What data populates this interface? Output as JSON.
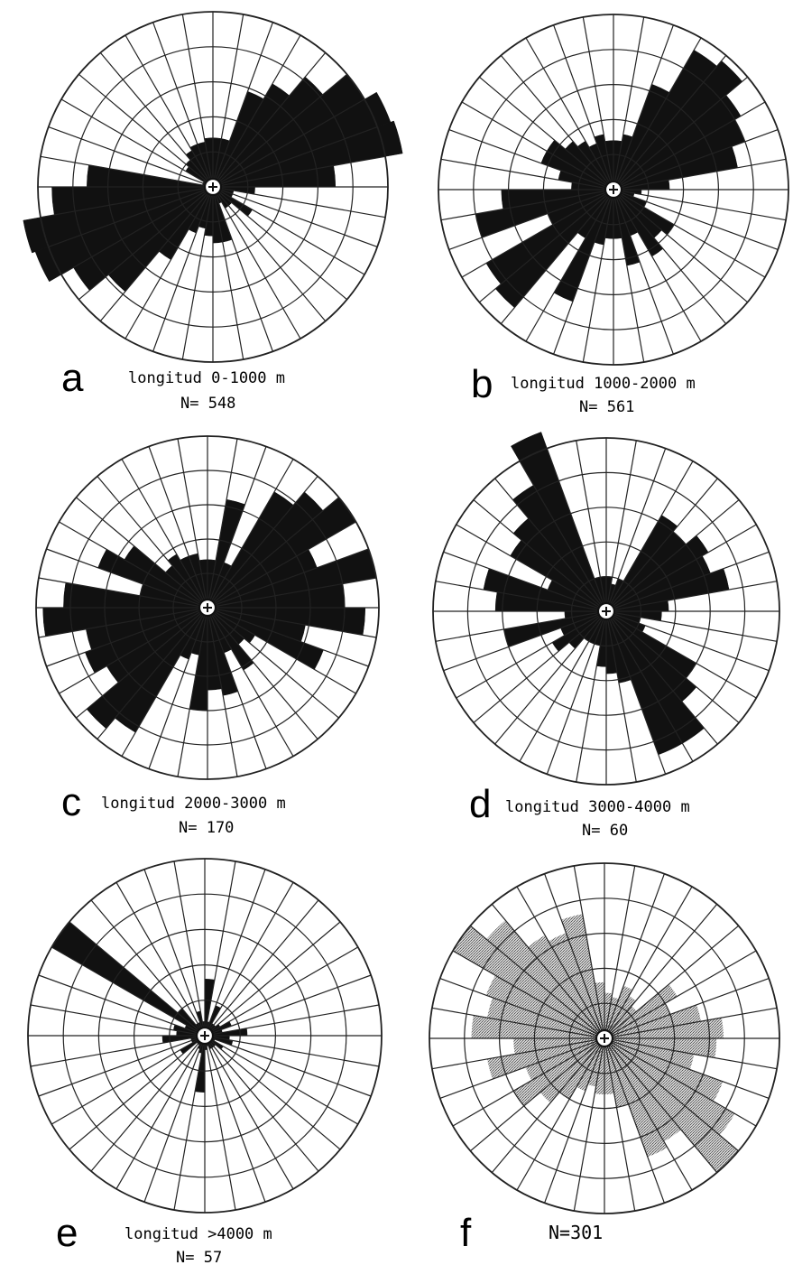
{
  "figure": {
    "colors": {
      "ink": "#111111",
      "grid": "#222222",
      "paper": "#ffffff",
      "stipple": "#9a9a9a"
    }
  },
  "chart_data": [
    {
      "type": "rose",
      "panel": "a",
      "title": "longitud 0-1000 m",
      "n_label": "N= 548",
      "fill": "solid",
      "sectors": 36,
      "bin_width_deg": 10,
      "rings": 5,
      "azimuth_start_deg": 0,
      "values": [
        1.4,
        1.4,
        2.9,
        3.4,
        4.1,
        5.0,
        5.4,
        5.5,
        3.5,
        1.2,
        0.6,
        0.6,
        1.3,
        0.7,
        0.7,
        0.5,
        1.6,
        1.6,
        1.4,
        1.2,
        1.4,
        2.4,
        3.9,
        4.6,
        5.4,
        5.5,
        4.6,
        3.6,
        0.3,
        0.3,
        0.9,
        1.0,
        1.2,
        1.3,
        1.3,
        1.4
      ]
    },
    {
      "type": "rose",
      "panel": "b",
      "title": "longitud 1000-2000 m",
      "n_label": "N= 561",
      "fill": "solid",
      "sectors": 36,
      "bin_width_deg": 10,
      "rings": 5,
      "azimuth_start_deg": 0,
      "values": [
        1.4,
        1.6,
        3.2,
        4.6,
        4.8,
        4.2,
        4.0,
        3.6,
        1.6,
        0.8,
        0.6,
        1.0,
        2.0,
        1.8,
        2.2,
        1.4,
        2.2,
        1.4,
        1.4,
        1.6,
        3.4,
        1.6,
        4.4,
        4.2,
        2.0,
        4.0,
        3.2,
        1.2,
        1.6,
        2.2,
        2.2,
        1.8,
        1.6,
        1.4,
        1.6,
        1.4
      ]
    },
    {
      "type": "rose",
      "panel": "c",
      "title": "longitud 2000-3000 m",
      "n_label": "N= 170",
      "fill": "solid",
      "sectors": 36,
      "bin_width_deg": 10,
      "rings": 5,
      "azimuth_start_deg": 0,
      "values": [
        1.4,
        3.2,
        1.4,
        3.9,
        4.4,
        5.0,
        3.4,
        5.0,
        4.0,
        4.6,
        2.9,
        3.6,
        1.6,
        1.4,
        2.1,
        1.4,
        2.6,
        2.4,
        3.0,
        1.4,
        1.6,
        4.2,
        4.6,
        3.4,
        3.8,
        3.6,
        4.8,
        4.2,
        2.0,
        3.4,
        2.8,
        1.6,
        1.8,
        1.6,
        1.6,
        1.4
      ]
    },
    {
      "type": "rose",
      "panel": "d",
      "title": "longitud 3000-4000 m",
      "n_label": "N= 60",
      "fill": "solid",
      "sectors": 36,
      "bin_width_deg": 10,
      "rings": 5,
      "azimuth_start_deg": 0,
      "values": [
        1.0,
        0.8,
        1.0,
        3.2,
        3.0,
        3.4,
        3.2,
        3.6,
        1.8,
        1.6,
        1.0,
        1.2,
        3.0,
        3.4,
        4.4,
        4.4,
        2.1,
        1.8,
        1.6,
        1.0,
        1.0,
        1.0,
        1.4,
        1.8,
        1.4,
        3.0,
        1.2,
        3.2,
        3.6,
        1.8,
        3.2,
        3.5,
        4.2,
        5.5,
        1.0,
        1.0
      ]
    },
    {
      "type": "rose",
      "panel": "e",
      "title": "longitud >4000 m",
      "n_label": "N= 57",
      "fill": "solid",
      "sectors": 36,
      "bin_width_deg": 10,
      "rings": 5,
      "azimuth_start_deg": 0,
      "values": [
        1.6,
        0.4,
        0.9,
        0.4,
        0.4,
        0.5,
        0.8,
        0.5,
        1.2,
        0.7,
        0.8,
        0.3,
        0.6,
        0.4,
        0.4,
        0.4,
        0.3,
        0.4,
        1.6,
        0.5,
        0.4,
        0.3,
        0.3,
        0.8,
        0.4,
        0.4,
        1.2,
        0.8,
        0.9,
        0.6,
        5.0,
        1.0,
        0.4,
        0.4,
        0.7,
        0.4
      ]
    },
    {
      "type": "rose",
      "panel": "f",
      "title": "",
      "n_label": "N=301",
      "fill": "stippled",
      "sectors": 36,
      "bin_width_deg": 10,
      "rings": 5,
      "azimuth_start_deg": 0,
      "values": [
        1.3,
        1.2,
        1.6,
        1.4,
        1.2,
        2.4,
        2.0,
        2.8,
        3.4,
        3.2,
        2.6,
        3.6,
        4.3,
        5.0,
        3.4,
        3.6,
        2.0,
        1.6,
        1.6,
        1.4,
        1.6,
        2.0,
        2.4,
        3.0,
        2.4,
        3.4,
        2.6,
        3.8,
        3.4,
        3.6,
        5.0,
        4.4,
        3.4,
        3.2,
        3.6,
        1.6
      ]
    }
  ]
}
